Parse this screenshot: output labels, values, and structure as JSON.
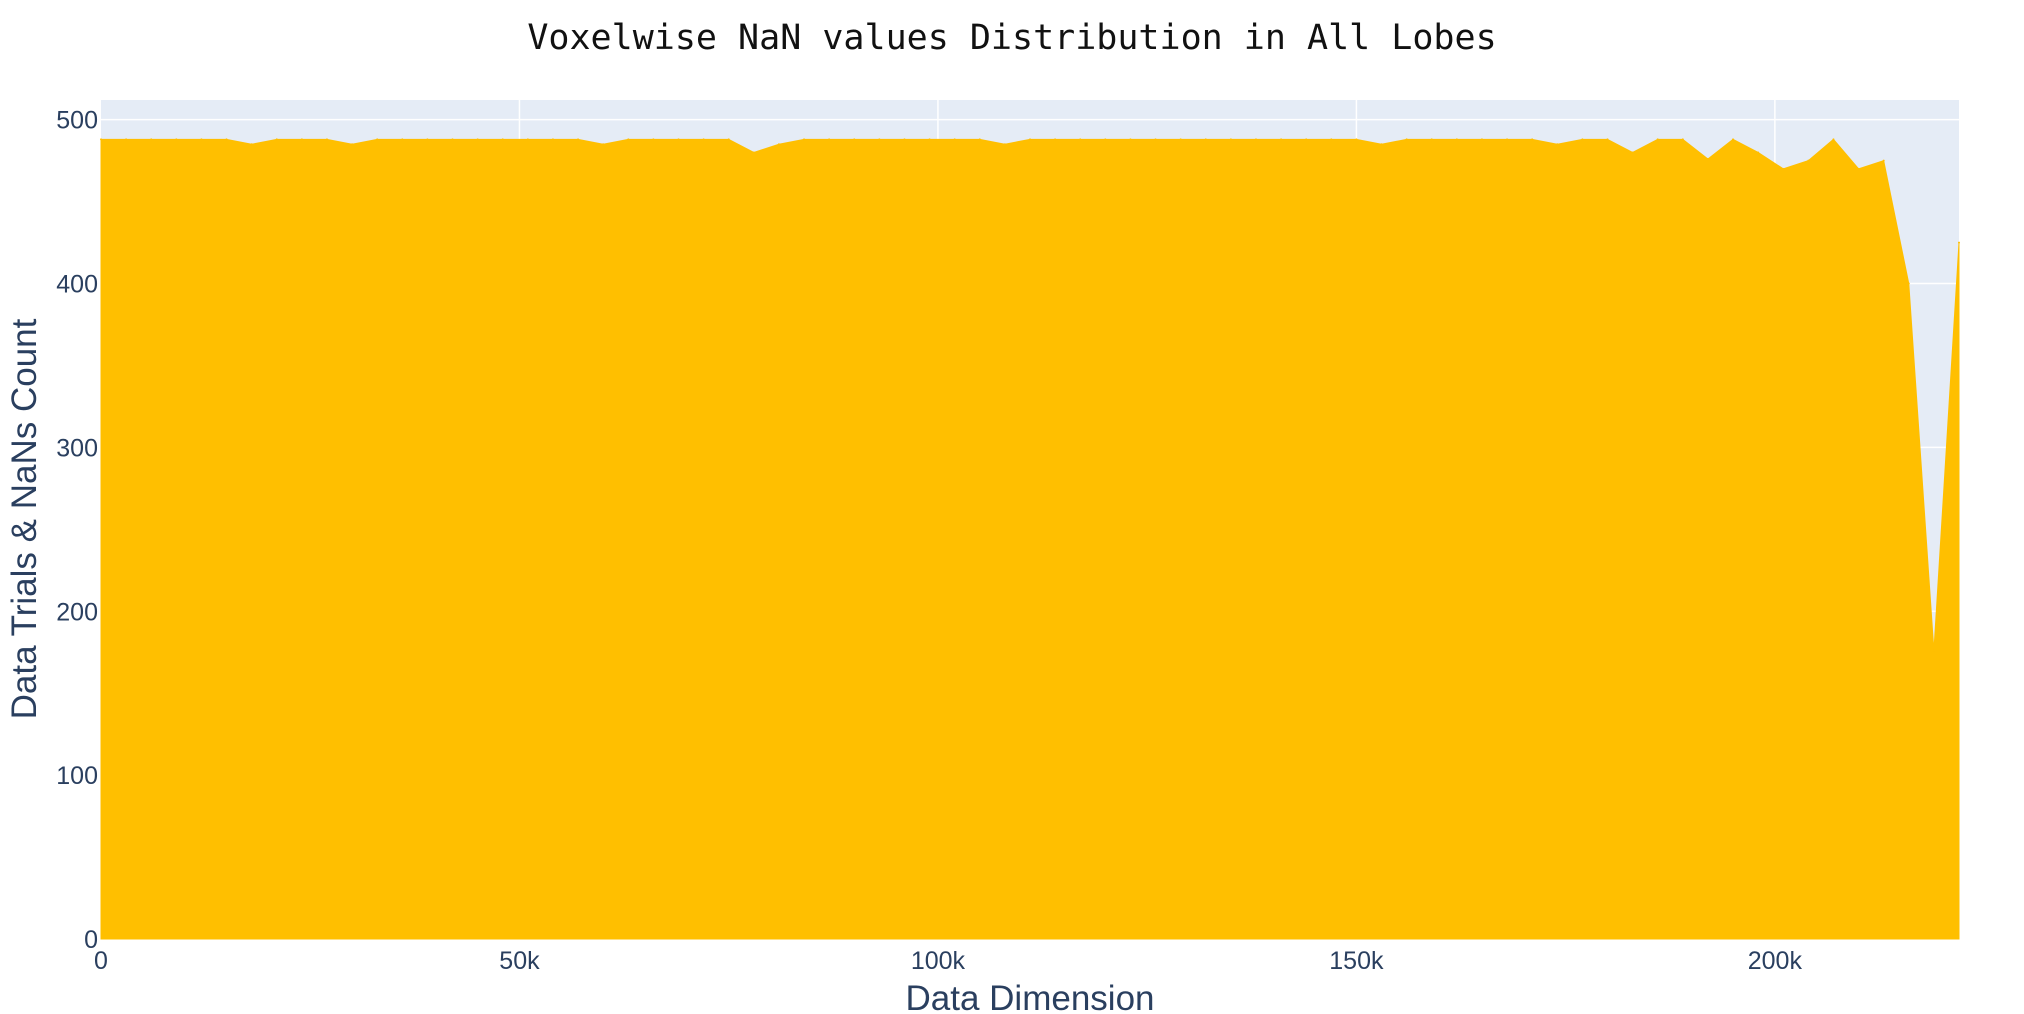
{
  "chart_data": {
    "type": "area",
    "title": "Voxelwise NaN values Distribution in All Lobes",
    "xlabel": "Data Dimension",
    "ylabel": "Data Trials & NaNs Count",
    "xlim": [
      0,
      222000
    ],
    "ylim": [
      0,
      512
    ],
    "x_ticks": [
      0,
      50000,
      100000,
      150000,
      200000
    ],
    "x_tick_labels": [
      "0",
      "50k",
      "100k",
      "150k",
      "200k"
    ],
    "y_ticks": [
      0,
      100,
      200,
      300,
      400,
      500
    ],
    "y_tick_labels": [
      "0",
      "100",
      "200",
      "300",
      "400",
      "500"
    ],
    "grid": true,
    "legend": "none",
    "colors": {
      "series": "#ffbf00",
      "plot_background": "#e5ecf6",
      "grid": "#ffffff",
      "text": "#2a3f5f"
    },
    "series": [
      {
        "x": [
          0,
          3000,
          6000,
          9000,
          12000,
          15000,
          18000,
          21000,
          24000,
          27000,
          30000,
          33000,
          36000,
          39000,
          42000,
          45000,
          48000,
          51000,
          54000,
          57000,
          60000,
          63000,
          66000,
          69000,
          72000,
          75000,
          78000,
          81000,
          84000,
          87000,
          90000,
          93000,
          96000,
          99000,
          102000,
          105000,
          108000,
          111000,
          114000,
          117000,
          120000,
          123000,
          126000,
          129000,
          132000,
          135000,
          138000,
          141000,
          144000,
          147000,
          150000,
          153000,
          156000,
          159000,
          162000,
          165000,
          168000,
          171000,
          174000,
          177000,
          180000,
          183000,
          186000,
          189000,
          192000,
          195000,
          198000,
          201000,
          204000,
          207000,
          210000,
          213000,
          216000,
          219000,
          222000
        ],
        "values": [
          488,
          488,
          488,
          488,
          488,
          488,
          485,
          488,
          488,
          488,
          485,
          488,
          488,
          488,
          488,
          488,
          488,
          488,
          488,
          488,
          485,
          488,
          488,
          488,
          488,
          488,
          480,
          485,
          488,
          488,
          488,
          488,
          488,
          488,
          488,
          488,
          485,
          488,
          488,
          488,
          488,
          488,
          488,
          488,
          488,
          488,
          488,
          488,
          488,
          488,
          488,
          485,
          488,
          488,
          488,
          488,
          488,
          488,
          485,
          488,
          488,
          480,
          488,
          488,
          476,
          488,
          480,
          470,
          475,
          488,
          470,
          475,
          400,
          176,
          425
        ]
      }
    ]
  }
}
